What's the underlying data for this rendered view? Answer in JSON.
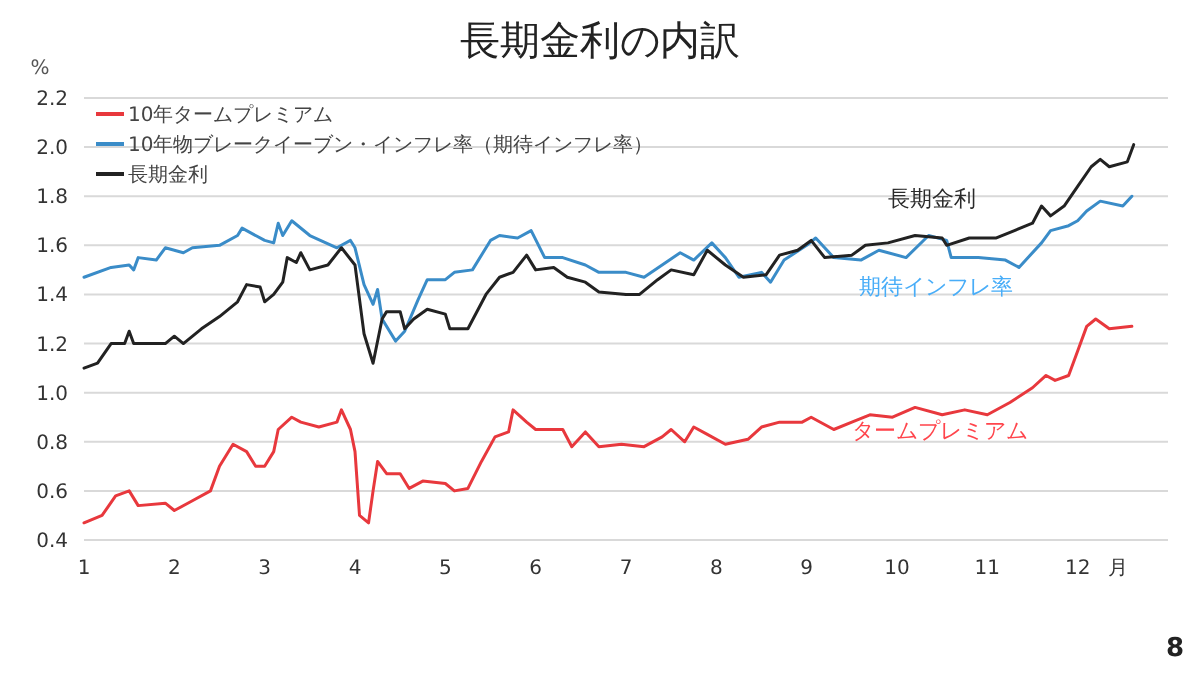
{
  "chart_data": {
    "type": "line",
    "title": "長期金利の内訳",
    "xlabel": "月",
    "ylabel": "%",
    "xlim": [
      1,
      13
    ],
    "xticks": [
      1,
      2,
      3,
      4,
      5,
      6,
      7,
      8,
      9,
      10,
      11,
      12
    ],
    "ylim": [
      0.4,
      2.2
    ],
    "yticks": [
      {
        "value": 0.4,
        "label": "0.4"
      },
      {
        "value": 0.6,
        "label": "0.6"
      },
      {
        "value": 0.8,
        "label": "0.8"
      },
      {
        "value": 1.0,
        "label": "1.0"
      },
      {
        "value": 1.2,
        "label": "1.2"
      },
      {
        "value": 1.4,
        "label": "1.4"
      },
      {
        "value": 1.6,
        "label": "1.6"
      },
      {
        "value": 1.8,
        "label": "1.8"
      },
      {
        "value": 2.0,
        "label": "2.0"
      },
      {
        "value": 2.2,
        "label": "2.2"
      }
    ],
    "grid": "y",
    "legend": "top left",
    "line_style": "solid",
    "marker": "none",
    "series": [
      {
        "name": "10年タームプレミアム",
        "color": "#e8383d",
        "x": [
          1.0,
          1.2,
          1.35,
          1.5,
          1.6,
          1.9,
          2.0,
          2.2,
          2.4,
          2.5,
          2.65,
          2.8,
          2.9,
          3.0,
          3.1,
          3.15,
          3.3,
          3.4,
          3.6,
          3.8,
          3.85,
          3.95,
          4.0,
          4.05,
          4.15,
          4.2,
          4.25,
          4.35,
          4.5,
          4.6,
          4.75,
          5.0,
          5.1,
          5.25,
          5.4,
          5.55,
          5.7,
          5.75,
          5.9,
          6.0,
          6.3,
          6.4,
          6.55,
          6.7,
          6.95,
          7.2,
          7.4,
          7.5,
          7.65,
          7.75,
          7.9,
          8.1,
          8.35,
          8.5,
          8.7,
          8.95,
          9.05,
          9.3,
          9.5,
          9.7,
          9.95,
          10.2,
          10.5,
          10.75,
          11.0,
          11.25,
          11.5,
          11.65,
          11.75,
          11.9,
          12.0,
          12.1,
          12.2,
          12.35,
          12.6
        ],
        "values": [
          0.47,
          0.5,
          0.58,
          0.6,
          0.54,
          0.55,
          0.52,
          0.56,
          0.6,
          0.7,
          0.79,
          0.76,
          0.7,
          0.7,
          0.76,
          0.85,
          0.9,
          0.88,
          0.86,
          0.88,
          0.93,
          0.85,
          0.76,
          0.5,
          0.47,
          0.6,
          0.72,
          0.67,
          0.67,
          0.61,
          0.64,
          0.63,
          0.6,
          0.61,
          0.72,
          0.82,
          0.84,
          0.93,
          0.88,
          0.85,
          0.85,
          0.78,
          0.84,
          0.78,
          0.79,
          0.78,
          0.82,
          0.85,
          0.8,
          0.86,
          0.83,
          0.79,
          0.81,
          0.86,
          0.88,
          0.88,
          0.9,
          0.85,
          0.88,
          0.91,
          0.9,
          0.94,
          0.91,
          0.93,
          0.91,
          0.96,
          1.02,
          1.07,
          1.05,
          1.07,
          1.17,
          1.27,
          1.3,
          1.26,
          1.27
        ]
      },
      {
        "name": "10年物ブレークイーブン・インフレ率（期待インフレ率）",
        "color": "#3a8cc8",
        "x": [
          1.0,
          1.3,
          1.5,
          1.55,
          1.6,
          1.8,
          1.9,
          2.1,
          2.2,
          2.5,
          2.7,
          2.75,
          3.0,
          3.1,
          3.15,
          3.2,
          3.3,
          3.5,
          3.8,
          3.95,
          4.0,
          4.1,
          4.2,
          4.25,
          4.3,
          4.45,
          4.55,
          4.7,
          4.8,
          5.0,
          5.1,
          5.3,
          5.5,
          5.6,
          5.8,
          5.95,
          6.1,
          6.3,
          6.55,
          6.7,
          7.0,
          7.2,
          7.4,
          7.6,
          7.75,
          7.95,
          8.1,
          8.25,
          8.5,
          8.6,
          8.75,
          9.0,
          9.1,
          9.3,
          9.6,
          9.8,
          10.1,
          10.35,
          10.55,
          10.6,
          10.9,
          11.2,
          11.35,
          11.6,
          11.7,
          11.9,
          12.0,
          12.1,
          12.25,
          12.5,
          12.6
        ],
        "values": [
          1.47,
          1.51,
          1.52,
          1.5,
          1.55,
          1.54,
          1.59,
          1.57,
          1.59,
          1.6,
          1.64,
          1.67,
          1.62,
          1.61,
          1.69,
          1.64,
          1.7,
          1.64,
          1.59,
          1.62,
          1.59,
          1.44,
          1.36,
          1.42,
          1.3,
          1.21,
          1.25,
          1.38,
          1.46,
          1.46,
          1.49,
          1.5,
          1.62,
          1.64,
          1.63,
          1.66,
          1.55,
          1.55,
          1.52,
          1.49,
          1.49,
          1.47,
          1.52,
          1.57,
          1.54,
          1.61,
          1.55,
          1.47,
          1.49,
          1.45,
          1.54,
          1.6,
          1.63,
          1.55,
          1.54,
          1.58,
          1.55,
          1.64,
          1.62,
          1.55,
          1.55,
          1.54,
          1.51,
          1.61,
          1.66,
          1.68,
          1.7,
          1.74,
          1.78,
          1.76,
          1.8
        ]
      },
      {
        "name": "長期金利",
        "color": "#222222",
        "x": [
          1.0,
          1.15,
          1.3,
          1.45,
          1.5,
          1.55,
          1.9,
          2.0,
          2.1,
          2.3,
          2.5,
          2.7,
          2.8,
          2.95,
          3.0,
          3.1,
          3.2,
          3.25,
          3.35,
          3.4,
          3.5,
          3.7,
          3.85,
          4.0,
          4.05,
          4.1,
          4.2,
          4.3,
          4.35,
          4.5,
          4.55,
          4.65,
          4.8,
          5.0,
          5.05,
          5.25,
          5.45,
          5.6,
          5.75,
          5.9,
          6.0,
          6.2,
          6.35,
          6.55,
          6.7,
          7.0,
          7.15,
          7.35,
          7.5,
          7.75,
          7.9,
          8.1,
          8.3,
          8.55,
          8.7,
          8.9,
          9.05,
          9.2,
          9.5,
          9.65,
          9.9,
          10.2,
          10.5,
          10.55,
          10.8,
          11.1,
          11.3,
          11.5,
          11.6,
          11.7,
          11.85,
          12.0,
          12.15,
          12.25,
          12.35,
          12.55,
          12.62
        ],
        "values": [
          1.1,
          1.12,
          1.2,
          1.2,
          1.25,
          1.2,
          1.2,
          1.23,
          1.2,
          1.26,
          1.31,
          1.37,
          1.44,
          1.43,
          1.37,
          1.4,
          1.45,
          1.55,
          1.53,
          1.57,
          1.5,
          1.52,
          1.59,
          1.52,
          1.38,
          1.24,
          1.12,
          1.3,
          1.33,
          1.33,
          1.26,
          1.3,
          1.34,
          1.32,
          1.26,
          1.26,
          1.4,
          1.47,
          1.49,
          1.56,
          1.5,
          1.51,
          1.47,
          1.45,
          1.41,
          1.4,
          1.4,
          1.46,
          1.5,
          1.48,
          1.58,
          1.52,
          1.47,
          1.48,
          1.56,
          1.58,
          1.62,
          1.55,
          1.56,
          1.6,
          1.61,
          1.64,
          1.63,
          1.6,
          1.63,
          1.63,
          1.66,
          1.69,
          1.76,
          1.72,
          1.76,
          1.84,
          1.92,
          1.95,
          1.92,
          1.94,
          2.01
        ]
      }
    ],
    "annotations": [
      "長期金利",
      "期待インフレ率",
      "タームプレミアム",
      "8"
    ]
  }
}
